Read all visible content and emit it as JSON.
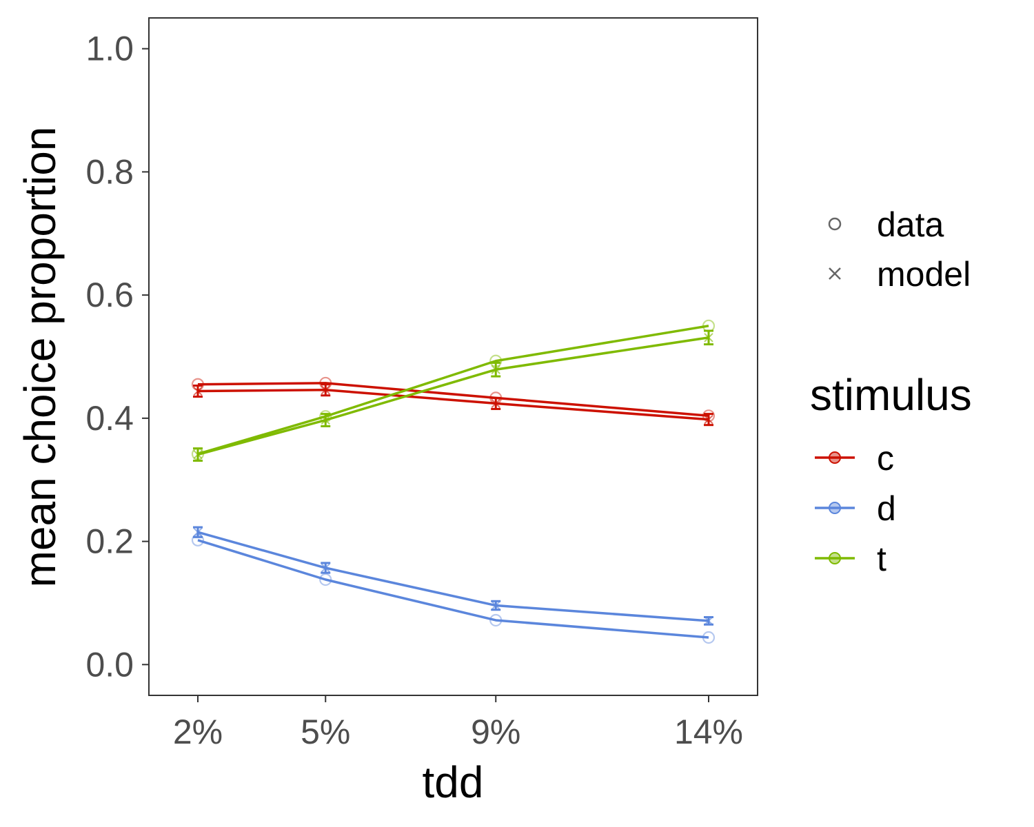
{
  "chart_data": {
    "type": "line",
    "xlabel": "tdd",
    "ylabel": "mean choice proportion",
    "categories": [
      "2%",
      "5%",
      "9%",
      "14%"
    ],
    "x": [
      2,
      5,
      9,
      14
    ],
    "xlim": [
      0.85,
      15.15
    ],
    "ylim": [
      -0.05,
      1.05
    ],
    "yticks": [
      0.0,
      0.2,
      0.4,
      0.6,
      0.8,
      1.0
    ],
    "ytick_labels": [
      "0.0",
      "0.2",
      "0.4",
      "0.6",
      "0.8",
      "1.0"
    ],
    "grid": false,
    "legend_position": "right",
    "shape_legend": [
      {
        "label": "data",
        "shape": "open-circle"
      },
      {
        "label": "model",
        "shape": "cross"
      }
    ],
    "color_legend": {
      "title": "stimulus",
      "items": [
        {
          "label": "c",
          "color": "#cc1100"
        },
        {
          "label": "d",
          "color": "#5b86dc"
        },
        {
          "label": "t",
          "color": "#7fba00"
        }
      ]
    },
    "series": [
      {
        "stimulus": "c",
        "kind": "data",
        "values": [
          0.455,
          0.457,
          0.433,
          0.404
        ]
      },
      {
        "stimulus": "c",
        "kind": "model",
        "values": [
          0.444,
          0.446,
          0.424,
          0.398
        ],
        "error": [
          0.009,
          0.009,
          0.009,
          0.009
        ]
      },
      {
        "stimulus": "d",
        "kind": "data",
        "values": [
          0.202,
          0.138,
          0.072,
          0.044
        ]
      },
      {
        "stimulus": "d",
        "kind": "model",
        "values": [
          0.215,
          0.157,
          0.096,
          0.071
        ],
        "error": [
          0.008,
          0.008,
          0.007,
          0.006
        ]
      },
      {
        "stimulus": "t",
        "kind": "data",
        "values": [
          0.342,
          0.403,
          0.493,
          0.55
        ]
      },
      {
        "stimulus": "t",
        "kind": "model",
        "values": [
          0.341,
          0.397,
          0.479,
          0.531
        ],
        "error": [
          0.01,
          0.01,
          0.011,
          0.011
        ]
      }
    ]
  }
}
